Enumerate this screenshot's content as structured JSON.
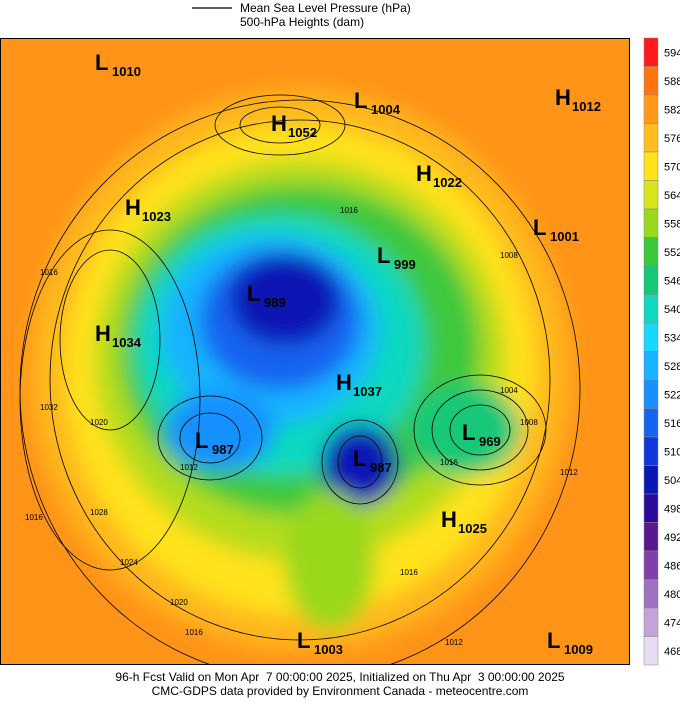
{
  "legend": {
    "pressure": "Mean Sea Level Pressure (hPa)",
    "heights": "500-hPa Heights (dam)"
  },
  "centers": [
    {
      "kind": "L",
      "value": "1010"
    },
    {
      "kind": "L",
      "value": "1004"
    },
    {
      "kind": "H",
      "value": "1012"
    },
    {
      "kind": "H",
      "value": "1052"
    },
    {
      "kind": "H",
      "value": "1022"
    },
    {
      "kind": "H",
      "value": "1023"
    },
    {
      "kind": "L",
      "value": "1001"
    },
    {
      "kind": "L",
      "value": "999"
    },
    {
      "kind": "L",
      "value": "989"
    },
    {
      "kind": "H",
      "value": "1034"
    },
    {
      "kind": "H",
      "value": "1037"
    },
    {
      "kind": "L",
      "value": "969"
    },
    {
      "kind": "L",
      "value": "987"
    },
    {
      "kind": "L",
      "value": "987"
    },
    {
      "kind": "H",
      "value": "1025"
    },
    {
      "kind": "L",
      "value": "1003"
    },
    {
      "kind": "L",
      "value": "1009"
    }
  ],
  "isobar_labels": [
    "1016",
    "1020",
    "1024",
    "1028",
    "1032",
    "1016",
    "1012",
    "1016",
    "1008",
    "1004",
    "1016",
    "1012",
    "1016",
    "1020",
    "1016",
    "1012",
    "1008"
  ],
  "colorbar": [
    {
      "value": 594,
      "color": "#ff1a1a"
    },
    {
      "value": 588,
      "color": "#ff7410"
    },
    {
      "value": 582,
      "color": "#ff9a18"
    },
    {
      "value": 576,
      "color": "#ffbd1e"
    },
    {
      "value": 570,
      "color": "#ffe21a"
    },
    {
      "value": 564,
      "color": "#d6e61a"
    },
    {
      "value": 558,
      "color": "#9ad81c"
    },
    {
      "value": 552,
      "color": "#3cc83c"
    },
    {
      "value": 546,
      "color": "#14c878"
    },
    {
      "value": 540,
      "color": "#10d8c0"
    },
    {
      "value": 534,
      "color": "#18d8ff"
    },
    {
      "value": 528,
      "color": "#18b4ff"
    },
    {
      "value": 522,
      "color": "#1890ff"
    },
    {
      "value": 516,
      "color": "#1464f0"
    },
    {
      "value": 510,
      "color": "#1038dc"
    },
    {
      "value": 504,
      "color": "#0818b4"
    },
    {
      "value": 498,
      "color": "#2a0a9a"
    },
    {
      "value": 492,
      "color": "#5a1890"
    },
    {
      "value": 486,
      "color": "#8040a8"
    },
    {
      "value": 480,
      "color": "#a070c0"
    },
    {
      "value": 474,
      "color": "#c4a4d8"
    },
    {
      "value": 468,
      "color": "#e8dcf0"
    }
  ],
  "footer": {
    "line1": "96-h Fcst Valid on Mon Apr  7 00:00:00 2025, Initialized on Thu Apr  3 00:00:00 2025",
    "line2": "CMC-GDPS data provided by Environment Canada - meteocentre.com"
  }
}
